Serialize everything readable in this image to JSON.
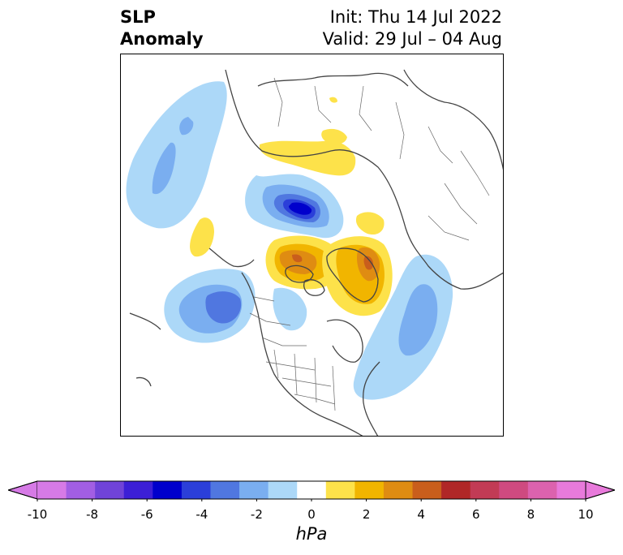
{
  "title": {
    "left_line1": "SLP",
    "left_line2": "Anomaly",
    "right_line1": "Init: Thu 14 Jul 2022",
    "right_line2": "Valid: 29 Jul – 04 Aug"
  },
  "colorbar": {
    "unit": "hPa",
    "min": -10,
    "max": 10,
    "ticks": [
      "-10",
      "-8",
      "-6",
      "-4",
      "-2",
      "0",
      "2",
      "4",
      "6",
      "8",
      "10"
    ],
    "extend": "both",
    "colors": [
      "#d67ae6",
      "#a25ee3",
      "#7043d8",
      "#3c1fd6",
      "#0000cc",
      "#2b3fd9",
      "#5077e0",
      "#7aaef0",
      "#acd8f8",
      "#ffffff",
      "#fde24a",
      "#f1b500",
      "#df8c12",
      "#c95e1c",
      "#b02727",
      "#c23b55",
      "#cf4a80",
      "#dc62ae",
      "#e87adb"
    ],
    "under_color": "#d67ae6",
    "over_color": "#e87adb"
  },
  "map": {
    "projection": "polar-stereographic-north",
    "anomaly_centers": [
      {
        "label": "low-arctic-barents",
        "value": -7
      },
      {
        "label": "low-gulf-of-alaska",
        "value": -4
      },
      {
        "label": "low-north-atlantic",
        "value": -3
      },
      {
        "label": "low-north-pacific",
        "value": -2
      },
      {
        "label": "high-canadian-arctic",
        "value": 5
      },
      {
        "label": "high-greenland",
        "value": 5
      },
      {
        "label": "high-siberia",
        "value": 1
      },
      {
        "label": "high-east-siberia",
        "value": 1
      },
      {
        "label": "high-north-pacific",
        "value": 1
      }
    ]
  }
}
